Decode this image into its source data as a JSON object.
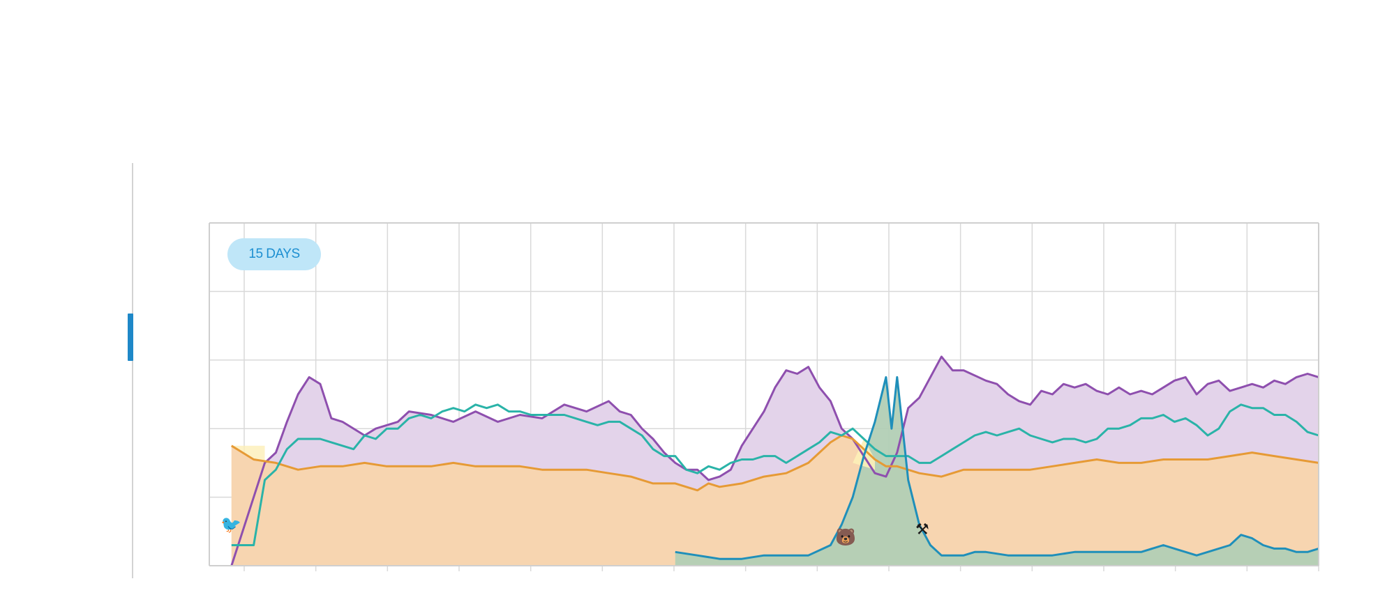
{
  "range_button": {
    "label": "15 DAYS",
    "bg_color": "#bfe6f8",
    "text_color": "#1d8fd1"
  },
  "sidebar": {
    "accent_color": "#1e88c8"
  },
  "markers": [
    {
      "icon": "bird-icon"
    },
    {
      "icon": "bear-icon"
    },
    {
      "icon": "hammer-icon"
    }
  ],
  "chart_data": {
    "type": "area",
    "grid": true,
    "legend": "none",
    "title": "",
    "xlabel": "",
    "ylabel": "",
    "x_range": [
      0,
      100
    ],
    "y_range": [
      0,
      100
    ],
    "x_grid_count": 15,
    "y_grid_count": 5,
    "series": [
      {
        "color": "#8e4fae",
        "fill": "#e3d3ea",
        "points": [
          [
            2,
            0
          ],
          [
            3,
            10
          ],
          [
            5,
            30
          ],
          [
            6,
            33
          ],
          [
            7,
            42
          ],
          [
            8,
            50
          ],
          [
            9,
            55
          ],
          [
            10,
            53
          ],
          [
            11,
            43
          ],
          [
            12,
            42
          ],
          [
            14,
            38
          ],
          [
            15,
            40
          ],
          [
            17,
            42
          ],
          [
            18,
            45
          ],
          [
            20,
            44
          ],
          [
            22,
            42
          ],
          [
            24,
            45
          ],
          [
            26,
            42
          ],
          [
            28,
            44
          ],
          [
            30,
            43
          ],
          [
            32,
            47
          ],
          [
            34,
            45
          ],
          [
            36,
            48
          ],
          [
            37,
            45
          ],
          [
            38,
            44
          ],
          [
            39,
            40
          ],
          [
            40,
            37
          ],
          [
            41,
            33
          ],
          [
            42,
            30
          ],
          [
            43,
            28
          ],
          [
            44,
            28
          ],
          [
            45,
            25
          ],
          [
            46,
            26
          ],
          [
            47,
            28
          ],
          [
            48,
            35
          ],
          [
            50,
            45
          ],
          [
            51,
            52
          ],
          [
            52,
            57
          ],
          [
            53,
            56
          ],
          [
            54,
            58
          ],
          [
            55,
            52
          ],
          [
            56,
            48
          ],
          [
            57,
            40
          ],
          [
            58,
            37
          ],
          [
            59,
            32
          ],
          [
            60,
            27
          ],
          [
            61,
            26
          ],
          [
            62,
            33
          ],
          [
            63,
            46
          ],
          [
            64,
            49
          ],
          [
            65,
            55
          ],
          [
            66,
            61
          ],
          [
            67,
            57
          ],
          [
            68,
            57
          ],
          [
            70,
            54
          ],
          [
            71,
            53
          ],
          [
            72,
            50
          ],
          [
            73,
            48
          ],
          [
            74,
            47
          ],
          [
            75,
            51
          ],
          [
            76,
            50
          ],
          [
            77,
            53
          ],
          [
            78,
            52
          ],
          [
            79,
            53
          ],
          [
            80,
            51
          ],
          [
            81,
            50
          ],
          [
            82,
            52
          ],
          [
            83,
            50
          ],
          [
            84,
            51
          ],
          [
            85,
            50
          ],
          [
            86,
            52
          ],
          [
            87,
            54
          ],
          [
            88,
            55
          ],
          [
            89,
            50
          ],
          [
            90,
            53
          ],
          [
            91,
            54
          ],
          [
            92,
            51
          ],
          [
            93,
            52
          ],
          [
            94,
            53
          ],
          [
            95,
            52
          ],
          [
            96,
            54
          ],
          [
            97,
            53
          ],
          [
            98,
            55
          ],
          [
            99,
            56
          ],
          [
            100,
            55
          ]
        ]
      },
      {
        "color": "#e69a35",
        "fill": "#f7d5b0",
        "points": [
          [
            2,
            35
          ],
          [
            3,
            33
          ],
          [
            4,
            31
          ],
          [
            6,
            30
          ],
          [
            8,
            28
          ],
          [
            10,
            29
          ],
          [
            12,
            29
          ],
          [
            14,
            30
          ],
          [
            16,
            29
          ],
          [
            18,
            29
          ],
          [
            20,
            29
          ],
          [
            22,
            30
          ],
          [
            24,
            29
          ],
          [
            26,
            29
          ],
          [
            28,
            29
          ],
          [
            30,
            28
          ],
          [
            32,
            28
          ],
          [
            34,
            28
          ],
          [
            36,
            27
          ],
          [
            38,
            26
          ],
          [
            40,
            24
          ],
          [
            42,
            24
          ],
          [
            44,
            22
          ],
          [
            45,
            24
          ],
          [
            46,
            23
          ],
          [
            48,
            24
          ],
          [
            50,
            26
          ],
          [
            52,
            27
          ],
          [
            54,
            30
          ],
          [
            55,
            33
          ],
          [
            56,
            36
          ],
          [
            57,
            38
          ],
          [
            58,
            37
          ],
          [
            59,
            34
          ],
          [
            60,
            31
          ],
          [
            61,
            29
          ],
          [
            62,
            29
          ],
          [
            64,
            27
          ],
          [
            66,
            26
          ],
          [
            68,
            28
          ],
          [
            70,
            28
          ],
          [
            72,
            28
          ],
          [
            74,
            28
          ],
          [
            76,
            29
          ],
          [
            78,
            30
          ],
          [
            80,
            31
          ],
          [
            82,
            30
          ],
          [
            84,
            30
          ],
          [
            86,
            31
          ],
          [
            88,
            31
          ],
          [
            90,
            31
          ],
          [
            92,
            32
          ],
          [
            94,
            33
          ],
          [
            96,
            32
          ],
          [
            98,
            31
          ],
          [
            100,
            30
          ]
        ]
      },
      {
        "color": "#2ab3a8",
        "fill": "none",
        "points": [
          [
            2,
            6
          ],
          [
            3,
            6
          ],
          [
            4,
            6
          ],
          [
            5,
            25
          ],
          [
            6,
            28
          ],
          [
            7,
            34
          ],
          [
            8,
            37
          ],
          [
            9,
            37
          ],
          [
            10,
            37
          ],
          [
            11,
            36
          ],
          [
            12,
            35
          ],
          [
            13,
            34
          ],
          [
            14,
            38
          ],
          [
            15,
            37
          ],
          [
            16,
            40
          ],
          [
            17,
            40
          ],
          [
            18,
            43
          ],
          [
            19,
            44
          ],
          [
            20,
            43
          ],
          [
            21,
            45
          ],
          [
            22,
            46
          ],
          [
            23,
            45
          ],
          [
            24,
            47
          ],
          [
            25,
            46
          ],
          [
            26,
            47
          ],
          [
            27,
            45
          ],
          [
            28,
            45
          ],
          [
            29,
            44
          ],
          [
            30,
            44
          ],
          [
            31,
            44
          ],
          [
            32,
            44
          ],
          [
            33,
            43
          ],
          [
            34,
            42
          ],
          [
            35,
            41
          ],
          [
            36,
            42
          ],
          [
            37,
            42
          ],
          [
            38,
            40
          ],
          [
            39,
            38
          ],
          [
            40,
            34
          ],
          [
            41,
            32
          ],
          [
            42,
            32
          ],
          [
            43,
            28
          ],
          [
            44,
            27
          ],
          [
            45,
            29
          ],
          [
            46,
            28
          ],
          [
            47,
            30
          ],
          [
            48,
            31
          ],
          [
            49,
            31
          ],
          [
            50,
            32
          ],
          [
            51,
            32
          ],
          [
            52,
            30
          ],
          [
            53,
            32
          ],
          [
            54,
            34
          ],
          [
            55,
            36
          ],
          [
            56,
            39
          ],
          [
            57,
            38
          ],
          [
            58,
            40
          ],
          [
            59,
            37
          ],
          [
            60,
            34
          ],
          [
            61,
            32
          ],
          [
            62,
            32
          ],
          [
            63,
            32
          ],
          [
            64,
            30
          ],
          [
            65,
            30
          ],
          [
            66,
            32
          ],
          [
            67,
            34
          ],
          [
            68,
            36
          ],
          [
            69,
            38
          ],
          [
            70,
            39
          ],
          [
            71,
            38
          ],
          [
            72,
            39
          ],
          [
            73,
            40
          ],
          [
            74,
            38
          ],
          [
            75,
            37
          ],
          [
            76,
            36
          ],
          [
            77,
            37
          ],
          [
            78,
            37
          ],
          [
            79,
            36
          ],
          [
            80,
            37
          ],
          [
            81,
            40
          ],
          [
            82,
            40
          ],
          [
            83,
            41
          ],
          [
            84,
            43
          ],
          [
            85,
            43
          ],
          [
            86,
            44
          ],
          [
            87,
            42
          ],
          [
            88,
            43
          ],
          [
            89,
            41
          ],
          [
            90,
            38
          ],
          [
            91,
            40
          ],
          [
            92,
            45
          ],
          [
            93,
            47
          ],
          [
            94,
            46
          ],
          [
            95,
            46
          ],
          [
            96,
            44
          ],
          [
            97,
            44
          ],
          [
            98,
            42
          ],
          [
            99,
            39
          ],
          [
            100,
            38
          ]
        ]
      },
      {
        "color": "#1f8fba",
        "fill": "#b2cfb5",
        "points": [
          [
            42,
            4
          ],
          [
            44,
            3
          ],
          [
            46,
            2
          ],
          [
            48,
            2
          ],
          [
            50,
            3
          ],
          [
            52,
            3
          ],
          [
            54,
            3
          ],
          [
            56,
            6
          ],
          [
            57,
            12
          ],
          [
            58,
            20
          ],
          [
            59,
            32
          ],
          [
            60,
            42
          ],
          [
            61,
            55
          ],
          [
            61.5,
            40
          ],
          [
            62,
            55
          ],
          [
            62.5,
            40
          ],
          [
            63,
            25
          ],
          [
            64,
            12
          ],
          [
            65,
            6
          ],
          [
            66,
            3
          ],
          [
            67,
            3
          ],
          [
            68,
            3
          ],
          [
            69,
            4
          ],
          [
            70,
            4
          ],
          [
            72,
            3
          ],
          [
            74,
            3
          ],
          [
            76,
            3
          ],
          [
            78,
            4
          ],
          [
            80,
            4
          ],
          [
            82,
            4
          ],
          [
            84,
            4
          ],
          [
            86,
            6
          ],
          [
            87,
            5
          ],
          [
            88,
            4
          ],
          [
            89,
            3
          ],
          [
            90,
            4
          ],
          [
            92,
            6
          ],
          [
            93,
            9
          ],
          [
            94,
            8
          ],
          [
            95,
            6
          ],
          [
            96,
            5
          ],
          [
            97,
            5
          ],
          [
            98,
            4
          ],
          [
            99,
            4
          ],
          [
            100,
            5
          ]
        ]
      }
    ]
  }
}
